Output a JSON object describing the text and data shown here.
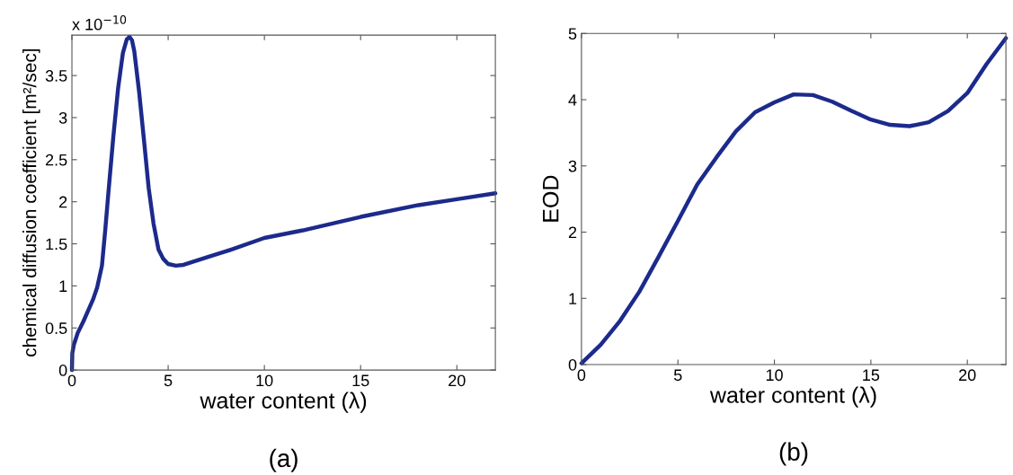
{
  "chart_data": [
    {
      "type": "line",
      "xlabel": "water content (λ)",
      "ylabel": "chemical diffusion coefficient [m²/sec]",
      "annotations": [
        "x 10$^{−10}$",
        "(a)"
      ],
      "xlim": [
        0,
        22
      ],
      "ylim": [
        0,
        3.98
      ],
      "xticks": [
        0,
        5,
        10,
        15,
        20
      ],
      "yticks": [
        0,
        0.5,
        1,
        1.5,
        2,
        2.5,
        3,
        3.5
      ],
      "grid": false,
      "line_style": "solid",
      "marker": "none",
      "series": [
        {
          "color": "#1c2a8c",
          "x": [
            0,
            0.02,
            0.1,
            0.3,
            0.6,
            0.89,
            1.1,
            1.31,
            1.56,
            1.73,
            1.9,
            2.15,
            2.4,
            2.65,
            2.85,
            2.99,
            3.12,
            3.24,
            3.49,
            3.74,
            3.99,
            4.24,
            4.5,
            4.75,
            5.0,
            5.4,
            5.8,
            7,
            8,
            10,
            12,
            15,
            18,
            20,
            22
          ],
          "values": [
            0,
            0.2,
            0.3,
            0.44,
            0.58,
            0.73,
            0.84,
            0.98,
            1.24,
            1.66,
            2.12,
            2.77,
            3.35,
            3.77,
            3.93,
            3.96,
            3.92,
            3.79,
            3.31,
            2.74,
            2.16,
            1.74,
            1.43,
            1.32,
            1.26,
            1.24,
            1.25,
            1.34,
            1.41,
            1.57,
            1.66,
            1.82,
            1.96,
            2.03,
            2.1
          ]
        }
      ]
    },
    {
      "type": "line",
      "xlabel": "water content (λ)",
      "ylabel": "EOD",
      "annotations": [
        "(b)"
      ],
      "xlim": [
        0,
        22
      ],
      "ylim": [
        0,
        5
      ],
      "xticks": [
        0,
        5,
        10,
        15,
        20
      ],
      "yticks": [
        0,
        1,
        2,
        3,
        4,
        5
      ],
      "grid": false,
      "line_style": "solid",
      "marker": "none",
      "series": [
        {
          "color": "#1c2a8c",
          "x": [
            0,
            1,
            2,
            3,
            4,
            5,
            6,
            7,
            8,
            9,
            10,
            11,
            12,
            13,
            14,
            15,
            16,
            17,
            18,
            19,
            20,
            21,
            22
          ],
          "values": [
            0.02,
            0.3,
            0.66,
            1.1,
            1.63,
            2.17,
            2.72,
            3.13,
            3.52,
            3.81,
            3.96,
            4.08,
            4.07,
            3.97,
            3.83,
            3.7,
            3.62,
            3.6,
            3.66,
            3.83,
            4.1,
            4.54,
            4.93
          ]
        }
      ]
    }
  ]
}
